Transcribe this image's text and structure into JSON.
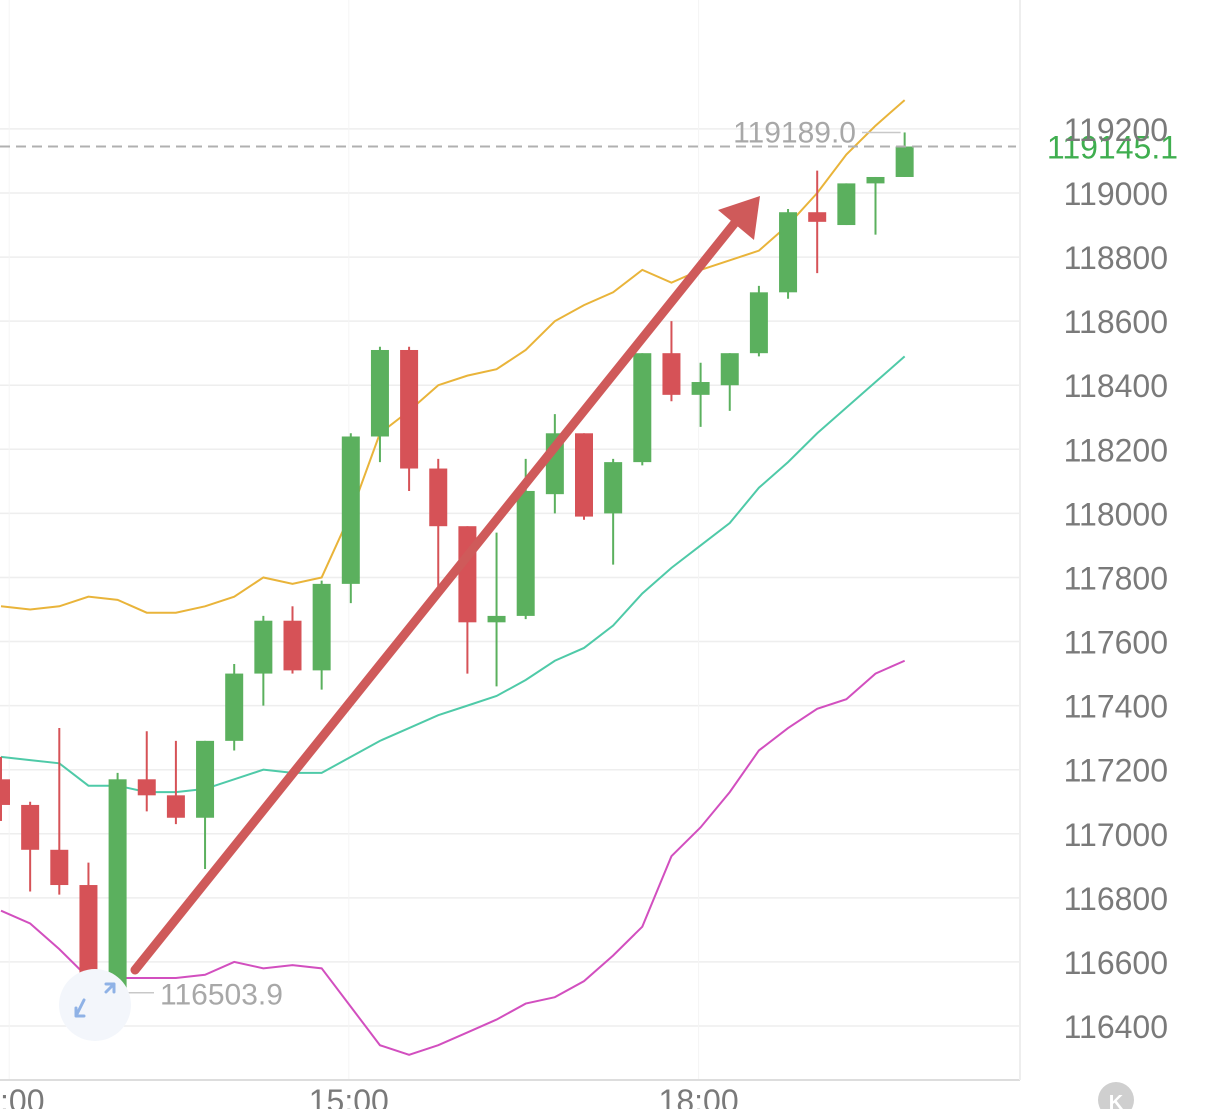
{
  "chart_data": {
    "type": "candlestick",
    "yrange": [
      116200,
      119300
    ],
    "y_ticks": [
      116400,
      116600,
      116800,
      117000,
      117200,
      117400,
      117600,
      117800,
      118000,
      118200,
      118400,
      118600,
      118800,
      119000,
      119200
    ],
    "y_tick_labels": [
      "116400",
      "116600",
      "116800",
      "117000",
      "117200",
      "117400",
      "117600",
      "117800",
      "118000",
      "118200",
      "118400",
      "118600",
      "118800",
      "119000",
      "119200"
    ],
    "x_tick_labels": [
      ":00",
      "15:00",
      "18:00"
    ],
    "grid": true,
    "colors": {
      "up": "#5bb05e",
      "down": "#d65257",
      "upper_band": "#e9b43a",
      "middle_band": "#4fcaa8",
      "lower_band": "#d24fbf",
      "arrow": "#cf5a5a",
      "price_line": "#b0b0b0",
      "grid": "#eeeeee"
    },
    "current_price": {
      "label": "119145.1",
      "value": 119145.1
    },
    "annotations": {
      "high": {
        "label": "119189.0",
        "value": 119189.0
      },
      "low": {
        "label": "116503.9",
        "value": 116503.9
      }
    },
    "candles": [
      {
        "o": 117170,
        "h": 117240,
        "l": 117040,
        "c": 117090
      },
      {
        "o": 117090,
        "h": 117100,
        "l": 116820,
        "c": 116950
      },
      {
        "o": 116950,
        "h": 117330,
        "l": 116810,
        "c": 116840
      },
      {
        "o": 116840,
        "h": 116910,
        "l": 116500,
        "c": 116510
      },
      {
        "o": 116510,
        "h": 117190,
        "l": 116503.9,
        "c": 117170
      },
      {
        "o": 117170,
        "h": 117320,
        "l": 117070,
        "c": 117120
      },
      {
        "o": 117120,
        "h": 117290,
        "l": 117030,
        "c": 117050
      },
      {
        "o": 117050,
        "h": 117290,
        "l": 116890,
        "c": 117290
      },
      {
        "o": 117290,
        "h": 117530,
        "l": 117260,
        "c": 117500
      },
      {
        "o": 117500,
        "h": 117680,
        "l": 117400,
        "c": 117665
      },
      {
        "o": 117665,
        "h": 117710,
        "l": 117500,
        "c": 117510
      },
      {
        "o": 117510,
        "h": 117790,
        "l": 117450,
        "c": 117780
      },
      {
        "o": 117780,
        "h": 118250,
        "l": 117720,
        "c": 118240
      },
      {
        "o": 118240,
        "h": 118520,
        "l": 118160,
        "c": 118510
      },
      {
        "o": 118510,
        "h": 118520,
        "l": 118070,
        "c": 118140
      },
      {
        "o": 118140,
        "h": 118170,
        "l": 117770,
        "c": 117960
      },
      {
        "o": 117960,
        "h": 117960,
        "l": 117500,
        "c": 117660
      },
      {
        "o": 117660,
        "h": 117940,
        "l": 117460,
        "c": 117680
      },
      {
        "o": 117680,
        "h": 118170,
        "l": 117670,
        "c": 118070
      },
      {
        "o": 118060,
        "h": 118310,
        "l": 118000,
        "c": 118250
      },
      {
        "o": 118250,
        "h": 118250,
        "l": 117980,
        "c": 117990
      },
      {
        "o": 118000,
        "h": 118170,
        "l": 117840,
        "c": 118160
      },
      {
        "o": 118160,
        "h": 118500,
        "l": 118150,
        "c": 118500
      },
      {
        "o": 118500,
        "h": 118600,
        "l": 118350,
        "c": 118370
      },
      {
        "o": 118370,
        "h": 118470,
        "l": 118270,
        "c": 118410
      },
      {
        "o": 118400,
        "h": 118500,
        "l": 118320,
        "c": 118500
      },
      {
        "o": 118500,
        "h": 118710,
        "l": 118490,
        "c": 118690
      },
      {
        "o": 118690,
        "h": 118950,
        "l": 118670,
        "c": 118940
      },
      {
        "o": 118940,
        "h": 119070,
        "l": 118750,
        "c": 118910
      },
      {
        "o": 118900,
        "h": 119030,
        "l": 118900,
        "c": 119030
      },
      {
        "o": 119030,
        "h": 119050,
        "l": 118870,
        "c": 119050
      },
      {
        "o": 119050,
        "h": 119189,
        "l": 119050,
        "c": 119145.1
      }
    ],
    "upper_band": [
      117710,
      117700,
      117710,
      117740,
      117730,
      117690,
      117690,
      117710,
      117740,
      117800,
      117780,
      117800,
      118000,
      118250,
      118320,
      118400,
      118430,
      118450,
      118510,
      118600,
      118650,
      118690,
      118760,
      118720,
      118760,
      118790,
      118820,
      118900,
      119000,
      119120,
      119210,
      119290
    ],
    "middle_band": [
      117240,
      117230,
      117220,
      117150,
      117150,
      117130,
      117130,
      117140,
      117170,
      117200,
      117190,
      117190,
      117240,
      117290,
      117330,
      117370,
      117400,
      117430,
      117480,
      117540,
      117580,
      117650,
      117750,
      117830,
      117900,
      117970,
      118080,
      118160,
      118250,
      118330,
      118410,
      118490
    ],
    "lower_band": [
      116760,
      116720,
      116640,
      116550,
      116550,
      116550,
      116550,
      116560,
      116600,
      116580,
      116590,
      116580,
      116460,
      116340,
      116310,
      116340,
      116380,
      116420,
      116470,
      116490,
      116540,
      116620,
      116710,
      116930,
      117020,
      117130,
      117260,
      117330,
      117390,
      117420,
      117500,
      117540
    ]
  }
}
